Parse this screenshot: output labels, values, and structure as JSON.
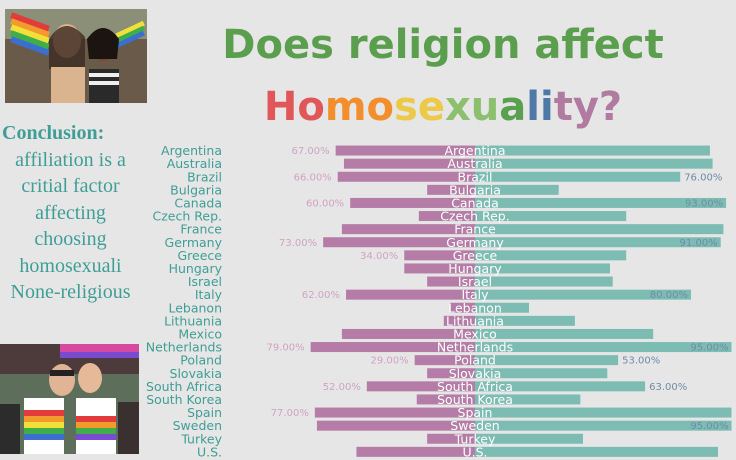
{
  "title": {
    "line1": "Does religion affect",
    "line2": [
      "H",
      "o",
      "m",
      "o",
      "s",
      "e",
      "x",
      "u",
      "a",
      "l",
      "i",
      "t",
      "y",
      "?"
    ],
    "line2_colors": [
      "#e15759",
      "#e15759",
      "#f28e2b",
      "#f28e2b",
      "#edc948",
      "#edc948",
      "#8cc06e",
      "#8cc06e",
      "#59a14f",
      "#4e79a7",
      "#4e79a7",
      "#b07aa1",
      "#b07aa1",
      "#b07aa1"
    ]
  },
  "conclusion": {
    "title": "Conclusion:",
    "body": "affiliation is a critial factor affecting choosing homosexuali None-religious"
  },
  "colors": {
    "religious_bar": "#b47ca6",
    "nonreligious_bar": "#7cbcb3",
    "label_religious": "#d0a3c4",
    "label_nonreligious": "#6f8ca8",
    "country_text": "#3f9e96",
    "title_green": "#5a9e4e",
    "background": "#e6e6e6"
  },
  "chart_data": {
    "type": "bar",
    "orientation": "diverging-horizontal",
    "categories": [
      "Argentina",
      "Australia",
      "Brazil",
      "Bulgaria",
      "Canada",
      "Czech Rep.",
      "France",
      "Germany",
      "Greece",
      "Hungary",
      "Israel",
      "Italy",
      "Lebanon",
      "Lithuania",
      "Mexico",
      "Netherlands",
      "Poland",
      "Slovakia",
      "South Africa",
      "South Korea",
      "Spain",
      "Sweden",
      "Turkey",
      "U.S."
    ],
    "series": [
      {
        "values": [
          67,
          63,
          66,
          23,
          60,
          27,
          64,
          73,
          34,
          34,
          23,
          62,
          12,
          15,
          64,
          79,
          29,
          23,
          52,
          28,
          77,
          76,
          23,
          57
        ],
        "labels": [
          "67.00%",
          "",
          "66.00%",
          "",
          "60.00%",
          "",
          "",
          "73.00%",
          "34.00%",
          "",
          "",
          "62.00%",
          "",
          "",
          "",
          "79.00%",
          "29.00%",
          "",
          "52.00%",
          "",
          "77.00%",
          "",
          "",
          ""
        ]
      },
      {
        "values": [
          87,
          88,
          76,
          31,
          93,
          56,
          92,
          91,
          56,
          50,
          51,
          80,
          20,
          37,
          66,
          95,
          53,
          49,
          63,
          39,
          95,
          95,
          40,
          90
        ],
        "labels": [
          "",
          "",
          "76.00%",
          "",
          "93.00%",
          "",
          "",
          "91.00%",
          "",
          "",
          "",
          "80.00%",
          "",
          "",
          "",
          "95.00%",
          "53.00%",
          "",
          "63.00%",
          "",
          "",
          "95.00%",
          "",
          ""
        ]
      }
    ]
  }
}
